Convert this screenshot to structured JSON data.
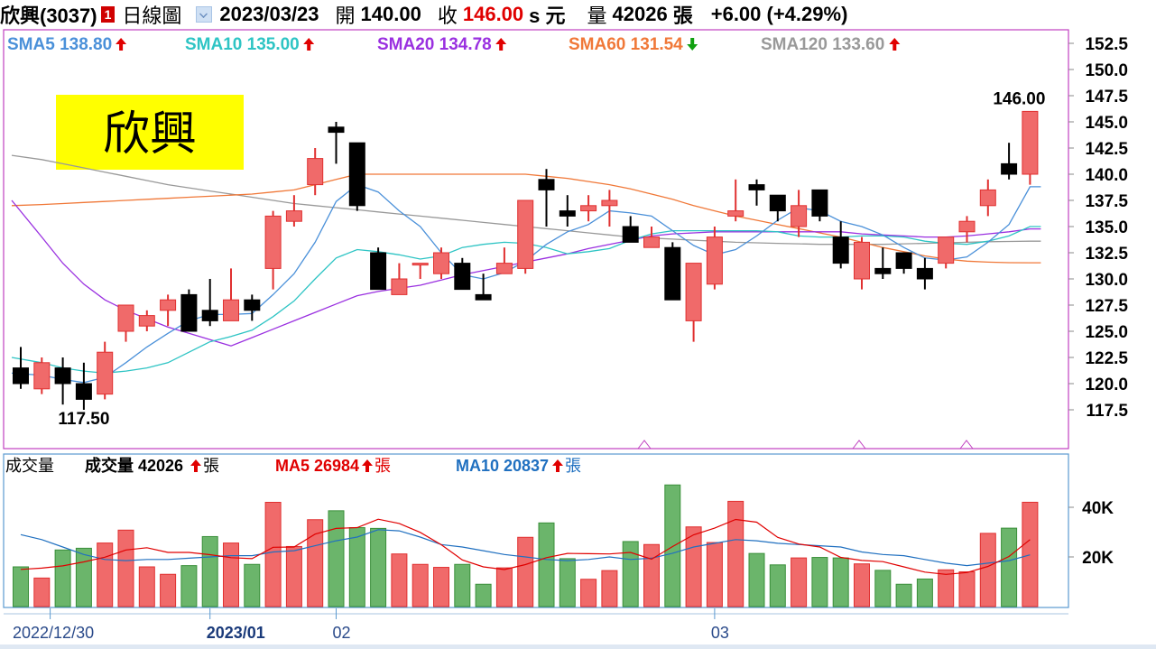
{
  "header": {
    "stock": "欣興(3037)",
    "badge": "1",
    "period": "日線圖",
    "date": "2023/03/23",
    "open_label": "開",
    "open": "140.00",
    "close_label": "收",
    "close": "146.00",
    "close_unit": "s 元",
    "volume_label": "量",
    "volume": "42026",
    "volume_unit": "張",
    "change": "+6.00 (+4.29%)"
  },
  "colors": {
    "up": "#f06a6a",
    "up_border": "#e03030",
    "down": "#000000",
    "vol_up": "#f06a6a",
    "vol_down": "#6bb56b",
    "sma5": "#4a90d9",
    "sma10": "#2ec4c4",
    "sma20": "#9a30e0",
    "sma60": "#f07838",
    "sma120": "#999999",
    "vol_ma5": "#e00000",
    "vol_ma10": "#2070c0",
    "frame": "#c040c0",
    "yellow": "#ffff00"
  },
  "watermark": "欣興",
  "chart_data": [
    {
      "type": "candlestick",
      "title": "",
      "legend": [
        {
          "label": "SMA5",
          "value": "138.80",
          "dir": "up",
          "key": "sma5"
        },
        {
          "label": "SMA10",
          "value": "135.00",
          "dir": "up",
          "key": "sma10"
        },
        {
          "label": "SMA20",
          "value": "134.78",
          "dir": "up",
          "key": "sma20"
        },
        {
          "label": "SMA60",
          "value": "131.54",
          "dir": "down",
          "key": "sma60"
        },
        {
          "label": "SMA120",
          "value": "133.60",
          "dir": "up",
          "key": "sma120"
        }
      ],
      "ylim": [
        115,
        154
      ],
      "yticks": [
        "152.5",
        "150.0",
        "147.5",
        "145.0",
        "142.5",
        "140.0",
        "137.5",
        "135.0",
        "132.5",
        "130.0",
        "127.5",
        "125.0",
        "122.5",
        "120.0",
        "117.5"
      ],
      "annotations": [
        {
          "text": "146.00",
          "at_bar": 48,
          "value": 146.0,
          "pos": "above"
        },
        {
          "text": "117.50",
          "at_bar": 3,
          "value": 117.5,
          "pos": "below"
        }
      ],
      "ohlc": [
        [
          121.5,
          123.5,
          119.5,
          120.0
        ],
        [
          119.5,
          122.5,
          119.0,
          122.0
        ],
        [
          121.5,
          122.5,
          118.0,
          120.0
        ],
        [
          120.0,
          122.0,
          117.5,
          118.5
        ],
        [
          119.0,
          124.0,
          118.5,
          123.0
        ],
        [
          125.0,
          127.5,
          124.0,
          127.5
        ],
        [
          125.5,
          127.0,
          125.0,
          126.5
        ],
        [
          127.0,
          128.5,
          125.5,
          128.0
        ],
        [
          128.5,
          129.0,
          125.0,
          125.0
        ],
        [
          127.0,
          130.0,
          125.5,
          126.0
        ],
        [
          126.0,
          131.0,
          126.0,
          128.0
        ],
        [
          128.0,
          128.5,
          126.0,
          127.0
        ],
        [
          131.0,
          136.5,
          129.0,
          136.0
        ],
        [
          135.5,
          138.0,
          135.0,
          136.5
        ],
        [
          139.0,
          142.5,
          138.0,
          141.5
        ],
        [
          144.5,
          145.0,
          141.0,
          144.0
        ],
        [
          143.0,
          143.0,
          136.5,
          137.0
        ],
        [
          132.5,
          133.0,
          129.0,
          129.0
        ],
        [
          128.5,
          131.5,
          128.5,
          130.0
        ],
        [
          131.5,
          131.5,
          130.0,
          131.5
        ],
        [
          130.5,
          133.0,
          130.0,
          132.5
        ],
        [
          131.5,
          132.0,
          129.0,
          129.0
        ],
        [
          128.5,
          130.5,
          128.0,
          128.0
        ],
        [
          130.5,
          133.0,
          130.5,
          131.5
        ],
        [
          131.0,
          137.5,
          130.5,
          137.5
        ],
        [
          139.5,
          140.5,
          135.0,
          138.5
        ],
        [
          136.5,
          138.0,
          135.0,
          136.0
        ],
        [
          136.5,
          138.0,
          135.5,
          137.0
        ],
        [
          137.0,
          138.5,
          135.0,
          137.5
        ],
        [
          135.0,
          136.0,
          133.5,
          133.5
        ],
        [
          133.0,
          135.0,
          133.0,
          134.0
        ],
        [
          133.0,
          133.5,
          128.0,
          128.0
        ],
        [
          126.0,
          131.5,
          124.0,
          131.5
        ],
        [
          129.5,
          135.0,
          129.0,
          134.0
        ],
        [
          136.0,
          139.5,
          135.5,
          136.5
        ],
        [
          139.0,
          139.5,
          137.0,
          138.5
        ],
        [
          138.0,
          138.0,
          135.5,
          136.5
        ],
        [
          135.0,
          138.5,
          134.0,
          137.0
        ],
        [
          138.5,
          138.5,
          135.5,
          136.0
        ],
        [
          134.0,
          135.5,
          131.0,
          131.5
        ],
        [
          130.0,
          134.0,
          129.0,
          133.5
        ],
        [
          131.0,
          133.0,
          130.0,
          130.5
        ],
        [
          132.5,
          132.5,
          130.5,
          131.0
        ],
        [
          131.0,
          132.0,
          129.0,
          130.0
        ],
        [
          131.5,
          134.0,
          131.0,
          134.0
        ],
        [
          134.5,
          136.0,
          133.5,
          135.5
        ],
        [
          137.0,
          139.5,
          136.0,
          138.5
        ],
        [
          141.0,
          143.0,
          139.5,
          140.0
        ],
        [
          140.0,
          146.0,
          139.0,
          146.0
        ]
      ],
      "sma5": [
        121.0,
        120.8,
        120.4,
        120.1,
        120.6,
        122.0,
        123.5,
        124.8,
        126.0,
        126.6,
        126.6,
        126.7,
        128.5,
        130.5,
        133.5,
        137.4,
        139.0,
        138.3,
        136.5,
        135.0,
        132.5,
        130.4,
        130.0,
        130.6,
        131.7,
        133.3,
        134.5,
        135.2,
        136.5,
        136.3,
        136.0,
        134.6,
        133.2,
        132.3,
        132.8,
        134.1,
        135.6,
        136.8,
        136.5,
        135.5,
        135.0,
        134.2,
        133.0,
        132.0,
        131.8,
        132.1,
        133.5,
        135.2,
        138.8
      ],
      "sma10": [
        122.5,
        122.0,
        121.5,
        121.2,
        121.0,
        121.2,
        121.5,
        122.0,
        123.0,
        124.0,
        124.5,
        125.1,
        126.4,
        127.9,
        130.0,
        132.0,
        132.8,
        132.6,
        132.3,
        131.9,
        132.2,
        133.0,
        133.3,
        133.5,
        133.4,
        133.0,
        132.4,
        132.6,
        132.9,
        133.7,
        134.3,
        134.6,
        134.6,
        134.6,
        134.6,
        134.6,
        134.5,
        134.1,
        134.0,
        134.0,
        134.1,
        134.1,
        134.0,
        133.6,
        133.4,
        133.3,
        133.6,
        134.1,
        135.0
      ],
      "sma20": [
        137.5,
        134.0,
        131.5,
        129.5,
        128.0,
        127.0,
        126.2,
        125.4,
        124.8,
        124.2,
        123.6,
        124.4,
        125.2,
        126.0,
        126.8,
        127.6,
        128.4,
        128.8,
        129.1,
        129.4,
        129.9,
        130.4,
        130.8,
        131.2,
        131.6,
        132.0,
        132.4,
        132.9,
        133.3,
        133.7,
        134.1,
        134.3,
        134.4,
        134.5,
        134.5,
        134.5,
        134.5,
        134.5,
        134.5,
        134.5,
        134.3,
        134.2,
        134.1,
        134.0,
        134.0,
        134.1,
        134.3,
        134.5,
        134.78
      ],
      "sma60": [
        137.0,
        137.1,
        137.2,
        137.3,
        137.4,
        137.5,
        137.6,
        137.7,
        137.8,
        137.9,
        138.0,
        138.1,
        138.3,
        138.5,
        139.0,
        139.5,
        140.0,
        140.0,
        140.0,
        140.0,
        140.0,
        140.0,
        140.0,
        140.0,
        140.0,
        139.8,
        139.6,
        139.3,
        139.0,
        138.6,
        138.1,
        137.6,
        137.0,
        136.5,
        136.0,
        135.6,
        135.2,
        134.8,
        134.4,
        134.0,
        133.5,
        133.0,
        132.6,
        132.2,
        131.9,
        131.7,
        131.6,
        131.55,
        131.54
      ],
      "sma120": [
        141.8,
        141.4,
        141.0,
        140.6,
        140.2,
        139.8,
        139.4,
        139.0,
        138.7,
        138.4,
        138.1,
        137.8,
        137.5,
        137.2,
        137.0,
        136.8,
        136.6,
        136.4,
        136.2,
        136.0,
        135.8,
        135.6,
        135.4,
        135.2,
        135.0,
        134.8,
        134.6,
        134.4,
        134.2,
        134.0,
        133.9,
        133.8,
        133.7,
        133.6,
        133.5,
        133.45,
        133.4,
        133.35,
        133.3,
        133.3,
        133.3,
        133.3,
        133.35,
        133.4,
        133.45,
        133.5,
        133.55,
        133.58,
        133.6
      ]
    },
    {
      "type": "bar",
      "title": "成交量",
      "legend": [
        {
          "label": "成交量",
          "value": "42026",
          "dir": "up",
          "unit": "張",
          "key": "vol"
        },
        {
          "label": "MA5",
          "value": "26984",
          "dir": "up",
          "unit": "張",
          "key": "vol_ma5"
        },
        {
          "label": "MA10",
          "value": "20837",
          "dir": "up",
          "unit": "張",
          "key": "vol_ma10"
        }
      ],
      "ylim": [
        0,
        61000
      ],
      "yticks": [
        {
          "value": 40000,
          "label": "40K"
        },
        {
          "value": 20000,
          "label": "20K"
        }
      ],
      "volume": [
        16000,
        11500,
        22800,
        23500,
        25600,
        30800,
        16000,
        13000,
        16500,
        28200,
        25600,
        17000,
        42000,
        24200,
        35000,
        38600,
        31800,
        31500,
        21200,
        17000,
        15800,
        17000,
        9000,
        15600,
        27900,
        33700,
        19300,
        11000,
        14500,
        26200,
        25000,
        49000,
        32100,
        25800,
        42400,
        21400,
        16800,
        19600,
        19800,
        19600,
        17200,
        14600,
        9000,
        11100,
        14800,
        14000,
        29500,
        31600,
        42026
      ],
      "ma5": [
        15000,
        15500,
        16400,
        18000,
        19900,
        22800,
        23700,
        21800,
        21800,
        20900,
        19700,
        19300,
        23900,
        24000,
        29200,
        31500,
        31800,
        35200,
        33500,
        29900,
        24900,
        18800,
        16000,
        14900,
        16900,
        19700,
        21400,
        21300,
        21200,
        21800,
        19100,
        24200,
        28900,
        31600,
        35100,
        34000,
        27900,
        25200,
        24000,
        19800,
        18600,
        18100,
        16000,
        13900,
        13000,
        13700,
        16200,
        20200,
        26984
      ],
      "ma10": [
        29000,
        27000,
        24000,
        21000,
        19000,
        18500,
        19000,
        19000,
        19500,
        20000,
        20500,
        20500,
        22000,
        22500,
        24500,
        26500,
        28000,
        31000,
        30500,
        28000,
        25000,
        24000,
        22500,
        21000,
        20000,
        19000,
        18500,
        19000,
        20000,
        19000,
        19500,
        21500,
        24000,
        25500,
        27000,
        26500,
        25500,
        25000,
        24500,
        24000,
        22000,
        21000,
        20500,
        19000,
        17500,
        16500,
        17500,
        18500,
        20837
      ],
      "xlabels": [
        {
          "text": "2022/12/30",
          "at_bar": 2,
          "bold": false
        },
        {
          "text": "2023/01",
          "at_bar": 9,
          "bold": true
        },
        {
          "text": "02",
          "at_bar": 15,
          "bold": false
        },
        {
          "text": "03",
          "at_bar": 33,
          "bold": false
        }
      ]
    }
  ]
}
